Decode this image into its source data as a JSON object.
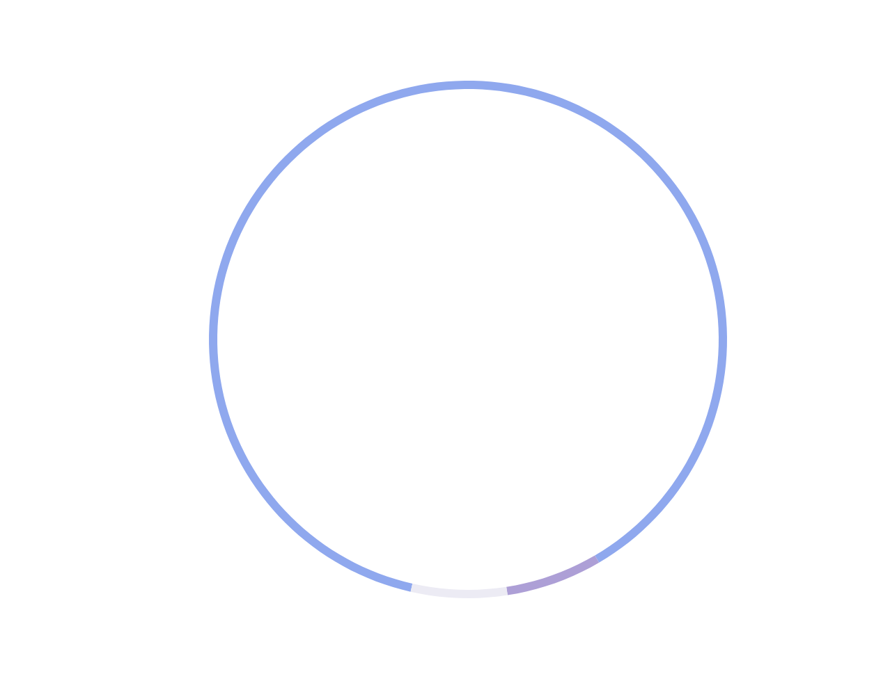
{
  "chart_data": {
    "type": "donut",
    "categories": [
      null,
      null,
      null
    ],
    "values": [
      88,
      6,
      6
    ],
    "colors": [
      "#8fa8ee",
      "#ad9fd6",
      "#ecebf4"
    ]
  }
}
